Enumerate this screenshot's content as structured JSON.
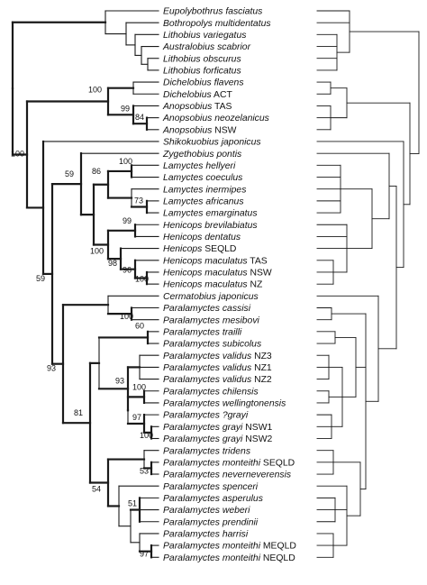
{
  "taxa": [
    {
      "genus": "Eupolybothrus",
      "epithet": "fasciatus",
      "suffix": ""
    },
    {
      "genus": "Bothropolys",
      "epithet": "multidentatus",
      "suffix": ""
    },
    {
      "genus": "Lithobius",
      "epithet": "variegatus",
      "suffix": ""
    },
    {
      "genus": "Australobius",
      "epithet": "scabrior",
      "suffix": ""
    },
    {
      "genus": "Lithobius",
      "epithet": "obscurus",
      "suffix": ""
    },
    {
      "genus": "Lithobius",
      "epithet": "forficatus",
      "suffix": ""
    },
    {
      "genus": "Dichelobius",
      "epithet": "flavens",
      "suffix": ""
    },
    {
      "genus": "Dichelobius",
      "epithet": "",
      "suffix": "ACT"
    },
    {
      "genus": "Anopsobius",
      "epithet": "",
      "suffix": "TAS"
    },
    {
      "genus": "Anopsobius",
      "epithet": "neozelanicus",
      "suffix": ""
    },
    {
      "genus": "Anopsobius",
      "epithet": "",
      "suffix": "NSW"
    },
    {
      "genus": "Shikokuobius",
      "epithet": "japonicus",
      "suffix": ""
    },
    {
      "genus": "Zygethobius",
      "epithet": "pontis",
      "suffix": ""
    },
    {
      "genus": "Lamyctes",
      "epithet": "hellyeri",
      "suffix": ""
    },
    {
      "genus": "Lamyctes",
      "epithet": "coeculus",
      "suffix": ""
    },
    {
      "genus": "Lamyctes",
      "epithet": "inermipes",
      "suffix": ""
    },
    {
      "genus": "Lamyctes",
      "epithet": "africanus",
      "suffix": ""
    },
    {
      "genus": "Lamyctes",
      "epithet": "emarginatus",
      "suffix": ""
    },
    {
      "genus": "Henicops",
      "epithet": "brevilabiatus",
      "suffix": ""
    },
    {
      "genus": "Henicops",
      "epithet": "dentatus",
      "suffix": ""
    },
    {
      "genus": "Henicops",
      "epithet": "",
      "suffix": "SEQLD"
    },
    {
      "genus": "Henicops",
      "epithet": "maculatus",
      "suffix": "TAS"
    },
    {
      "genus": "Henicops",
      "epithet": "maculatus",
      "suffix": "NSW"
    },
    {
      "genus": "Henicops",
      "epithet": "maculatus",
      "suffix": "NZ"
    },
    {
      "genus": "Cermatobius",
      "epithet": "japonicus",
      "suffix": ""
    },
    {
      "genus": "Paralamyctes",
      "epithet": "cassisi",
      "suffix": ""
    },
    {
      "genus": "Paralamyctes",
      "epithet": "mesibovi",
      "suffix": ""
    },
    {
      "genus": "Paralamyctes",
      "epithet": "trailli",
      "suffix": ""
    },
    {
      "genus": "Paralamyctes",
      "epithet": "subicolus",
      "suffix": ""
    },
    {
      "genus": "Paralamyctes",
      "epithet": "validus",
      "suffix": "NZ3"
    },
    {
      "genus": "Paralamyctes",
      "epithet": "validus",
      "suffix": "NZ1"
    },
    {
      "genus": "Paralamyctes",
      "epithet": "validus",
      "suffix": "NZ2"
    },
    {
      "genus": "Paralamyctes",
      "epithet": "chilensis",
      "suffix": ""
    },
    {
      "genus": "Paralamyctes",
      "epithet": "wellingtonensis",
      "suffix": ""
    },
    {
      "genus": "Paralamyctes",
      "epithet": "?grayi",
      "suffix": ""
    },
    {
      "genus": "Paralamyctes",
      "epithet": "grayi",
      "suffix": "NSW1"
    },
    {
      "genus": "Paralamyctes",
      "epithet": "grayi",
      "suffix": "NSW2"
    },
    {
      "genus": "Paralamyctes",
      "epithet": "tridens",
      "suffix": ""
    },
    {
      "genus": "Paralamyctes",
      "epithet": "monteithi",
      "suffix": "SEQLD"
    },
    {
      "genus": "Paralamyctes",
      "epithet": "neverneverensis",
      "suffix": ""
    },
    {
      "genus": "Paralamyctes",
      "epithet": "spenceri",
      "suffix": ""
    },
    {
      "genus": "Paralamyctes",
      "epithet": "asperulus",
      "suffix": ""
    },
    {
      "genus": "Paralamyctes",
      "epithet": "weberi",
      "suffix": ""
    },
    {
      "genus": "Paralamyctes",
      "epithet": "prendinii",
      "suffix": ""
    },
    {
      "genus": "Paralamyctes",
      "epithet": "harrisi",
      "suffix": ""
    },
    {
      "genus": "Paralamyctes",
      "epithet": "monteithi",
      "suffix": "MEQLD"
    },
    {
      "genus": "Paralamyctes",
      "epithet": "monteithi",
      "suffix": "NEQLD"
    }
  ],
  "support_values": [
    {
      "node": "dichelobius-anopsobius",
      "value": "100"
    },
    {
      "node": "anopsobius",
      "value": "99"
    },
    {
      "node": "anopsobius-neo-nsw",
      "value": "84"
    },
    {
      "node": "root-split",
      "value": "100"
    },
    {
      "node": "henicopidae-core",
      "value": "59"
    },
    {
      "node": "zygethobius-henicops",
      "value": "59"
    },
    {
      "node": "lamyctes",
      "value": "86"
    },
    {
      "node": "lamyctes-hellyeri",
      "value": "100"
    },
    {
      "node": "lamyctes-africanus",
      "value": "73"
    },
    {
      "node": "henicops-brev",
      "value": "99"
    },
    {
      "node": "henicops",
      "value": "100"
    },
    {
      "node": "henicops-seqld",
      "value": "98"
    },
    {
      "node": "henicops-maculatus",
      "value": "96"
    },
    {
      "node": "henicops-mac-nsw",
      "value": "100"
    },
    {
      "node": "henicopinae",
      "value": "93"
    },
    {
      "node": "paralamyctes-cassisi",
      "value": "100"
    },
    {
      "node": "paralamyctes",
      "value": "81"
    },
    {
      "node": "paralamyctes-trailli",
      "value": "60"
    },
    {
      "node": "paralamyctes-validus-chilensis",
      "value": "93"
    },
    {
      "node": "paralamyctes-chilensis",
      "value": "100"
    },
    {
      "node": "paralamyctes-grayi",
      "value": "97"
    },
    {
      "node": "paralamyctes-grayi-nsw",
      "value": "100"
    },
    {
      "node": "paralamyctes-monteithi-seqld",
      "value": "53"
    },
    {
      "node": "paralamyctes-asperulus-weberi",
      "value": "51"
    },
    {
      "node": "paralamyctes-monteithi-qld",
      "value": "97"
    },
    {
      "node": "paralamyctes-tridens-spenceri",
      "value": "54"
    }
  ]
}
